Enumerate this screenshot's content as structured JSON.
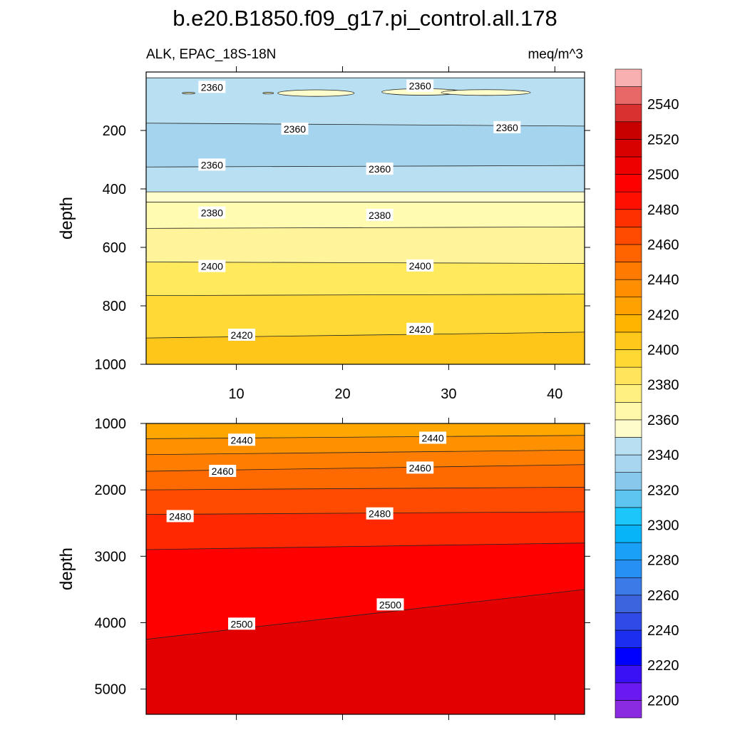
{
  "title": "b.e20.B1850.f09_g17.pi_control.all.178",
  "subtitle_left": "ALK, EPAC_18S-18N",
  "subtitle_right": "meq/m^3",
  "chart_data": [
    {
      "type": "contour",
      "panel": "upper",
      "xlabel": "",
      "ylabel": "depth",
      "xlim": [
        1.5,
        42.8
      ],
      "ylim": [
        0,
        1000
      ],
      "y_inverted": true,
      "x_ticks": [
        10,
        20,
        30,
        40
      ],
      "y_ticks": [
        200,
        400,
        600,
        800,
        1000
      ],
      "fills": [
        {
          "level": 2370,
          "color": "#a4d4ee",
          "top": [
            20,
            20
          ]
        },
        {
          "level": 2380,
          "color": "#b9e0f2",
          "top": [
            20,
            20
          ]
        },
        {
          "level": 2360,
          "color": "#a4d4ee",
          "top": [
            175,
            185
          ]
        },
        {
          "level": 2365,
          "color": "#b9e0f2",
          "top": [
            325,
            320
          ]
        },
        {
          "level": 2380,
          "color": "#fffdcc",
          "top": [
            410,
            410
          ]
        },
        {
          "level": 2385,
          "color": "#fffbb0",
          "top": [
            445,
            445
          ]
        },
        {
          "level": 2390,
          "color": "#fff49a",
          "top": [
            535,
            530
          ]
        },
        {
          "level": 2400,
          "color": "#ffe95d",
          "top": [
            650,
            655
          ]
        },
        {
          "level": 2410,
          "color": "#ffd935",
          "top": [
            765,
            760
          ]
        },
        {
          "level": 2420,
          "color": "#ffc61a",
          "top": [
            910,
            890
          ]
        }
      ],
      "contour_labels": [
        {
          "text": "2360",
          "x": 7.7,
          "y": 52
        },
        {
          "text": "2360",
          "x": 27.3,
          "y": 48
        },
        {
          "text": "2360",
          "x": 15.5,
          "y": 195
        },
        {
          "text": "2360",
          "x": 35.5,
          "y": 190
        },
        {
          "text": "2360",
          "x": 7.7,
          "y": 318
        },
        {
          "text": "2360",
          "x": 23.5,
          "y": 332
        },
        {
          "text": "2380",
          "x": 7.7,
          "y": 482
        },
        {
          "text": "2380",
          "x": 23.5,
          "y": 490
        },
        {
          "text": "2400",
          "x": 7.7,
          "y": 665
        },
        {
          "text": "2400",
          "x": 27.3,
          "y": 663
        },
        {
          "text": "2420",
          "x": 10.5,
          "y": 900
        },
        {
          "text": "2420",
          "x": 27.3,
          "y": 880
        }
      ]
    },
    {
      "type": "contour",
      "panel": "lower",
      "xlabel": "",
      "ylabel": "depth",
      "xlim": [
        1.5,
        42.8
      ],
      "ylim": [
        1000,
        5380
      ],
      "y_inverted": true,
      "x_ticks": [
        10,
        20,
        30,
        40
      ],
      "y_ticks": [
        1000,
        2000,
        3000,
        4000,
        5000
      ],
      "fills": [
        {
          "level": 2430,
          "color": "#ffa700",
          "top": [
            1000,
            1000
          ]
        },
        {
          "level": 2440,
          "color": "#ff9100",
          "top": [
            1230,
            1180
          ]
        },
        {
          "level": 2450,
          "color": "#ff7d00",
          "top": [
            1470,
            1400
          ]
        },
        {
          "level": 2460,
          "color": "#ff6a00",
          "top": [
            1720,
            1620
          ]
        },
        {
          "level": 2470,
          "color": "#ff4b00",
          "top": [
            2000,
            1960
          ]
        },
        {
          "level": 2480,
          "color": "#ff2800",
          "top": [
            2370,
            2330
          ]
        },
        {
          "level": 2490,
          "color": "#ff0000",
          "top": [
            2900,
            2800
          ]
        },
        {
          "level": 2500,
          "color": "#e30000",
          "top": [
            4250,
            3500
          ]
        }
      ],
      "contour_labels": [
        {
          "text": "2440",
          "x": 10.5,
          "y": 1250
        },
        {
          "text": "2440",
          "x": 28.5,
          "y": 1220
        },
        {
          "text": "2460",
          "x": 8.7,
          "y": 1720
        },
        {
          "text": "2460",
          "x": 27.3,
          "y": 1670
        },
        {
          "text": "2480",
          "x": 4.7,
          "y": 2400
        },
        {
          "text": "2480",
          "x": 23.5,
          "y": 2360
        },
        {
          "text": "2500",
          "x": 10.5,
          "y": 4020
        },
        {
          "text": "2500",
          "x": 24.5,
          "y": 3730
        }
      ]
    }
  ],
  "colorbar": {
    "colors": [
      "#8a2be2",
      "#6a19f0",
      "#3a10f5",
      "#0000ff",
      "#1c2ef0",
      "#2f4ae6",
      "#3c64dc",
      "#3b7be8",
      "#2790f5",
      "#1aa0f7",
      "#08b4f8",
      "#1cc5fa",
      "#5ec4f0",
      "#87c8ec",
      "#a8d6f0",
      "#b9e0f2",
      "#fffccc",
      "#fff8a8",
      "#fff080",
      "#ffe45c",
      "#ffd833",
      "#ffc81a",
      "#ffb400",
      "#ffa100",
      "#ff8e00",
      "#ff7a00",
      "#ff6400",
      "#ff4b00",
      "#ff3000",
      "#ff1000",
      "#ff0000",
      "#ee0000",
      "#d90000",
      "#c80000",
      "#d93030",
      "#e86868",
      "#f8b0b0"
    ],
    "labels": [
      "2200",
      "2220",
      "2240",
      "2260",
      "2280",
      "2300",
      "2320",
      "2340",
      "2360",
      "2380",
      "2400",
      "2420",
      "2440",
      "2460",
      "2480",
      "2500",
      "2520",
      "2540"
    ]
  }
}
